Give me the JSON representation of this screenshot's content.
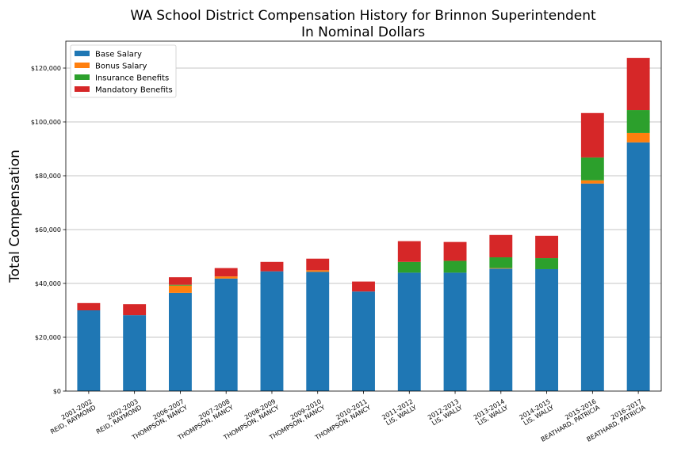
{
  "chart_data": {
    "type": "bar",
    "stacked": true,
    "title": "WA School District Compensation History for Brinnon Superintendent",
    "subtitle": "In Nominal Dollars",
    "xlabel": "",
    "ylabel": "Total Compensation",
    "ylim": [
      0,
      130000
    ],
    "yticks": [
      0,
      20000,
      40000,
      60000,
      80000,
      100000,
      120000
    ],
    "ytick_labels": [
      "$0",
      "$20,000",
      "$40,000",
      "$60,000",
      "$80,000",
      "$100,000",
      "$120,000"
    ],
    "grid": "horizontal",
    "legend_position": "top-left",
    "categories": [
      [
        "2001-2002",
        "REID, RAYMOND"
      ],
      [
        "2002-2003",
        "REID, RAYMOND"
      ],
      [
        "2006-2007",
        "THOMPSON, NANCY"
      ],
      [
        "2007-2008",
        "THOMPSON, NANCY"
      ],
      [
        "2008-2009",
        "THOMPSON, NANCY"
      ],
      [
        "2009-2010",
        "THOMPSON, NANCY"
      ],
      [
        "2010-2011",
        "THOMPSON, NANCY"
      ],
      [
        "2011-2012",
        "LIS, WALLY"
      ],
      [
        "2012-2013",
        "LIS, WALLY"
      ],
      [
        "2013-2014",
        "LIS, WALLY"
      ],
      [
        "2014-2015",
        "LIS, WALLY"
      ],
      [
        "2015-2016",
        "BEATHARD, PATRICIA"
      ],
      [
        "2016-2017",
        "BEATHARD, PATRICIA"
      ]
    ],
    "series": [
      {
        "name": "Base Salary",
        "color": "#1f77b4",
        "values": [
          30000,
          28200,
          36500,
          41800,
          44500,
          44300,
          37000,
          44000,
          44000,
          45500,
          45300,
          77100,
          92400
        ]
      },
      {
        "name": "Bonus Salary",
        "color": "#ff7f0e",
        "values": [
          0,
          0,
          2700,
          800,
          0,
          600,
          0,
          0,
          0,
          200,
          0,
          1200,
          3500
        ]
      },
      {
        "name": "Insurance Benefits",
        "color": "#2ca02c",
        "values": [
          0,
          0,
          300,
          0,
          0,
          0,
          0,
          4000,
          4400,
          4000,
          4100,
          8500,
          8500
        ]
      },
      {
        "name": "Mandatory Benefits",
        "color": "#d62728",
        "values": [
          2700,
          4100,
          2800,
          3100,
          3500,
          4300,
          3700,
          7700,
          7000,
          8300,
          8300,
          16500,
          19400
        ]
      }
    ]
  }
}
